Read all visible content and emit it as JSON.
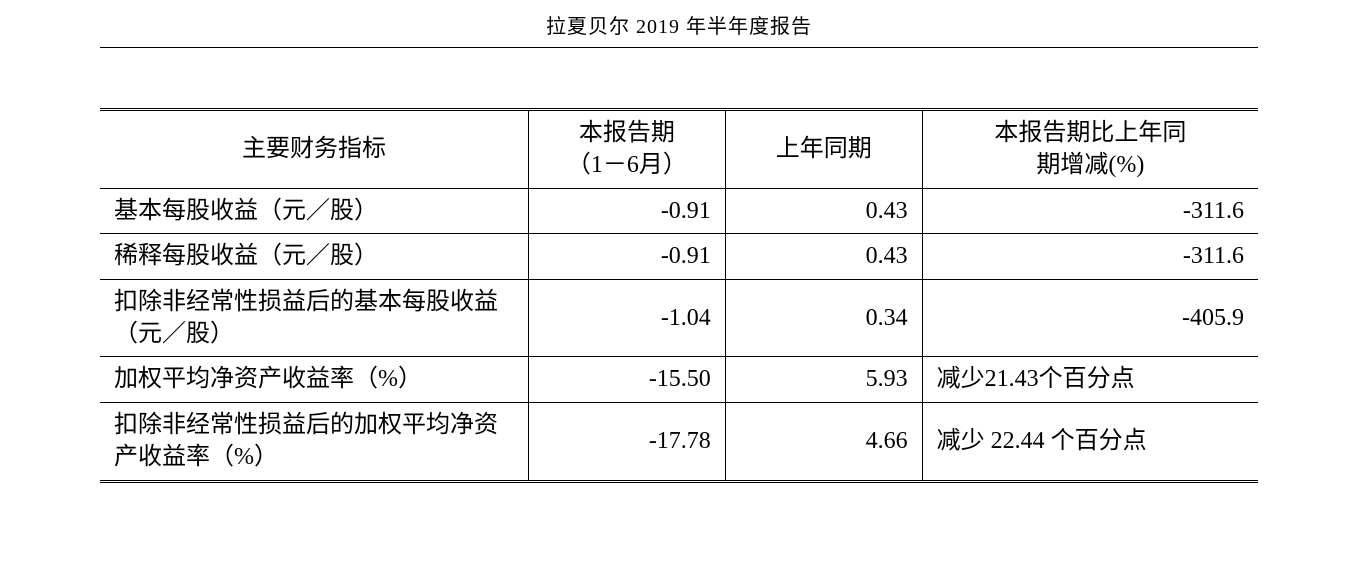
{
  "doc_title": "拉夏贝尔 2019 年半年度报告",
  "table": {
    "type": "table",
    "columns": [
      {
        "label": "主要财务指标",
        "align": "center"
      },
      {
        "label": "本报告期\n（1－6月）",
        "align": "center"
      },
      {
        "label": "上年同期",
        "align": "center"
      },
      {
        "label": "本报告期比上年同\n期增减(%)",
        "align": "center"
      }
    ],
    "column_widths_pct": [
      37,
      17,
      17,
      29
    ],
    "border_color": "#000000",
    "text_color": "#000000",
    "background_color": "#ffffff",
    "font_family": "SimSun",
    "header_fontsize": 24,
    "cell_fontsize": 24,
    "rows": [
      {
        "label": "基本每股收益（元／股）",
        "current": "-0.91",
        "prior": "0.43",
        "change": "-311.6",
        "change_is_text": false
      },
      {
        "label": "稀释每股收益（元／股）",
        "current": "-0.91",
        "prior": "0.43",
        "change": "-311.6",
        "change_is_text": false
      },
      {
        "label": "扣除非经常性损益后的基本每股收益（元／股）",
        "current": "-1.04",
        "prior": "0.34",
        "change": "-405.9",
        "change_is_text": false
      },
      {
        "label": "加权平均净资产收益率（%）",
        "current": "-15.50",
        "prior": "5.93",
        "change": "减少21.43个百分点",
        "change_is_text": true
      },
      {
        "label": "扣除非经常性损益后的加权平均净资产收益率（%）",
        "current": "-17.78",
        "prior": "4.66",
        "change": "减少 22.44 个百分点",
        "change_is_text": true
      }
    ]
  }
}
